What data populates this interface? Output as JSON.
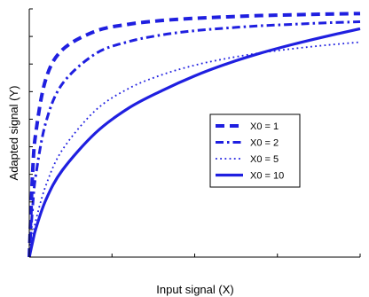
{
  "chart_data": {
    "type": "line",
    "xlabel": "Input signal (X)",
    "ylabel": "Adapted signal (Y)",
    "xlim": [
      0,
      100
    ],
    "ylim": [
      0,
      1
    ],
    "grid": false,
    "legend_position": "center-right",
    "ticks_labeled": false,
    "color": "#1f1fe0",
    "series": [
      {
        "name": "X0 = 1",
        "style": "dashed",
        "x": [
          0,
          1,
          2,
          5,
          10,
          20,
          30,
          40,
          50,
          60,
          70,
          80,
          90,
          100
        ],
        "y": [
          0,
          0.337,
          0.503,
          0.717,
          0.835,
          0.91,
          0.938,
          0.953,
          0.962,
          0.968,
          0.973,
          0.976,
          0.979,
          0.981
        ]
      },
      {
        "name": "X0 = 2",
        "style": "dash-dot",
        "x": [
          0,
          1,
          2,
          5,
          10,
          20,
          30,
          40,
          50,
          60,
          70,
          80,
          90,
          100
        ],
        "y": [
          0,
          0.198,
          0.332,
          0.542,
          0.698,
          0.819,
          0.868,
          0.895,
          0.912,
          0.923,
          0.932,
          0.938,
          0.944,
          0.948
        ]
      },
      {
        "name": "X0 = 5",
        "style": "dotted",
        "x": [
          0,
          1,
          2,
          5,
          10,
          20,
          30,
          40,
          50,
          60,
          70,
          80,
          90,
          100
        ],
        "y": [
          0,
          0.081,
          0.148,
          0.288,
          0.432,
          0.591,
          0.679,
          0.734,
          0.773,
          0.801,
          0.823,
          0.84,
          0.854,
          0.866
        ]
      },
      {
        "name": "X0 = 10",
        "style": "solid",
        "x": [
          0,
          1,
          2,
          5,
          10,
          20,
          30,
          40,
          50,
          60,
          70,
          80,
          90,
          100
        ],
        "y": [
          0,
          0.06,
          0.115,
          0.23,
          0.35,
          0.5,
          0.6,
          0.67,
          0.73,
          0.78,
          0.822,
          0.858,
          0.89,
          0.92
        ]
      }
    ]
  }
}
